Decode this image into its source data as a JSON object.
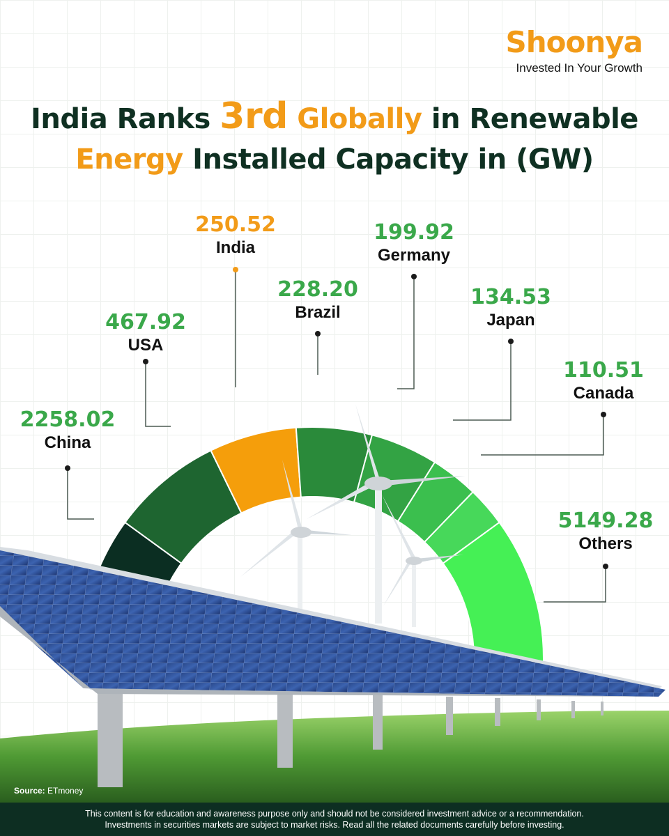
{
  "brand": {
    "logo_text": "Shoonya",
    "tagline": "Invested In Your Growth",
    "accent": "#f29b18",
    "dark": "#0f3022"
  },
  "title": {
    "part1": "India Ranks ",
    "highlight1": "3rd",
    "part2": " ",
    "highlight2": "Globally",
    "part3": " in Renewable",
    "highlight3": "Energy",
    "part4": " Installed Capacity in (GW)"
  },
  "chart_data": {
    "type": "gauge",
    "unit": "GW",
    "categories": [
      "China",
      "USA",
      "India",
      "Brazil",
      "Germany",
      "Japan",
      "Canada",
      "Others"
    ],
    "values": [
      2258.02,
      467.92,
      250.52,
      228.2,
      199.92,
      134.53,
      110.51,
      5149.28
    ],
    "value_labels": [
      "2258.02",
      "467.92",
      "250.52",
      "228.20",
      "199.92",
      "134.53",
      "110.51",
      "5149.28"
    ],
    "colors": [
      "#0b2e22",
      "#1e6530",
      "#f59e0b",
      "#2a8a3a",
      "#33a344",
      "#3bbf4e",
      "#47d85a",
      "#45f055"
    ],
    "label_colors": [
      "#3aa84a",
      "#3aa84a",
      "#f29b18",
      "#3aa84a",
      "#3aa84a",
      "#3aa84a",
      "#3aa84a",
      "#3aa84a"
    ],
    "highlight": "India"
  },
  "source": {
    "label": "Source:",
    "text": "ETmoney"
  },
  "disclaimer": {
    "line1": "This content is for education and awareness purpose only and should not be considered investment advice or a recommendation.",
    "line2": "Investments in securities markets are subject to market risks. Read all the related documents carefully before investing."
  }
}
